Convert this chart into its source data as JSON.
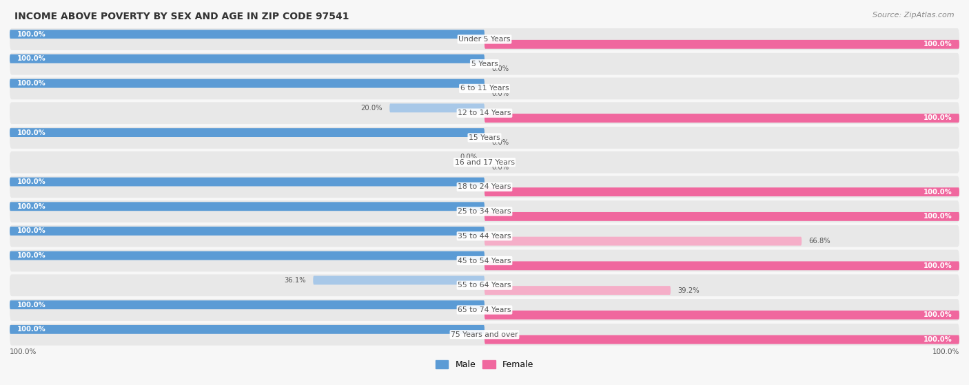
{
  "title": "INCOME ABOVE POVERTY BY SEX AND AGE IN ZIP CODE 97541",
  "source": "Source: ZipAtlas.com",
  "categories": [
    "Under 5 Years",
    "5 Years",
    "6 to 11 Years",
    "12 to 14 Years",
    "15 Years",
    "16 and 17 Years",
    "18 to 24 Years",
    "25 to 34 Years",
    "35 to 44 Years",
    "45 to 54 Years",
    "55 to 64 Years",
    "65 to 74 Years",
    "75 Years and over"
  ],
  "male_values": [
    100.0,
    100.0,
    100.0,
    20.0,
    100.0,
    0.0,
    100.0,
    100.0,
    100.0,
    100.0,
    36.1,
    100.0,
    100.0
  ],
  "female_values": [
    100.0,
    0.0,
    0.0,
    100.0,
    0.0,
    0.0,
    100.0,
    100.0,
    66.8,
    100.0,
    39.2,
    100.0,
    100.0
  ],
  "male_color_full": "#5b9bd5",
  "male_color_partial": "#a8c8e8",
  "female_color_full": "#f0679e",
  "female_color_partial": "#f5aec8",
  "row_bg_color": "#e8e8e8",
  "fig_bg_color": "#f7f7f7",
  "text_color_dark": "#555555",
  "text_color_white": "#ffffff",
  "cat_label_color": "#555555",
  "title_color": "#333333",
  "source_color": "#888888"
}
